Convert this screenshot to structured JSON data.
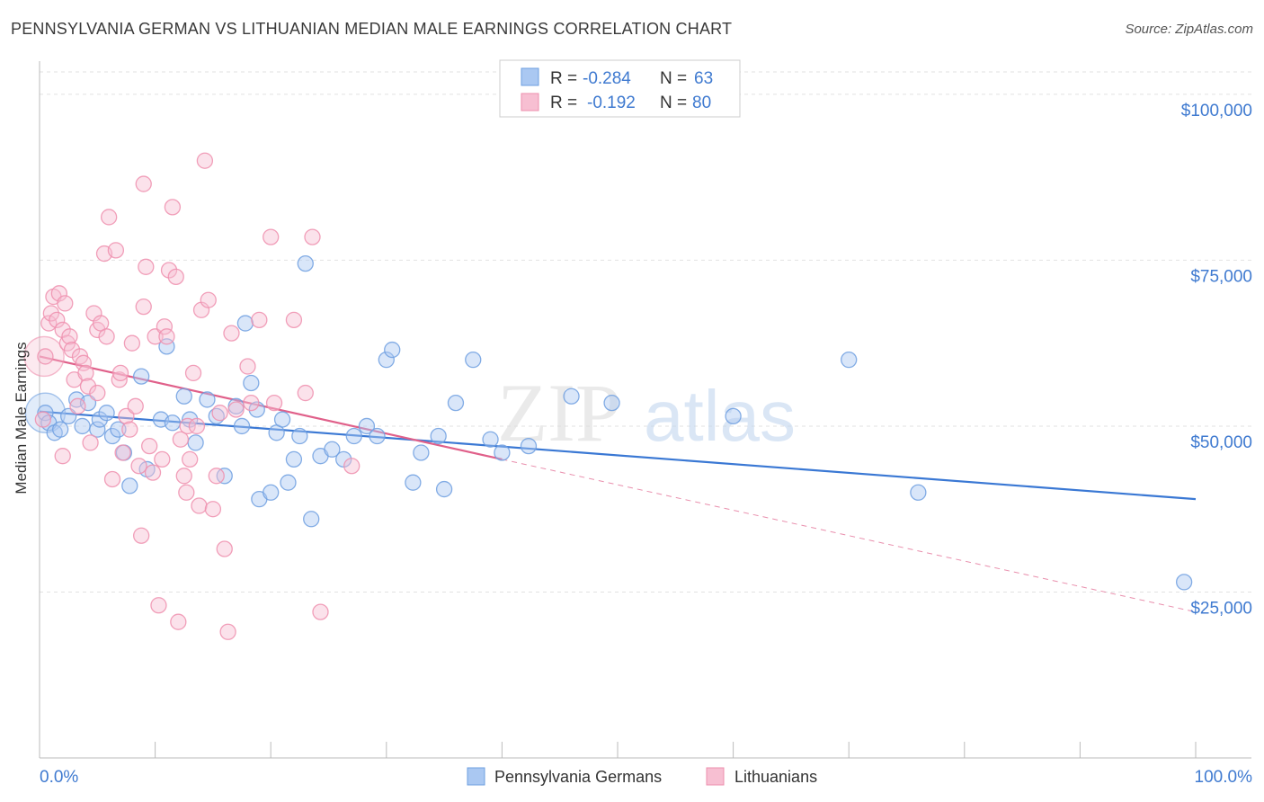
{
  "title": "PENNSYLVANIA GERMAN VS LITHUANIAN MEDIAN MALE EARNINGS CORRELATION CHART",
  "source": "Source: ZipAtlas.com",
  "watermark": {
    "zip": "ZIP",
    "atlas": "atlas"
  },
  "colors": {
    "blue": "#6e9fe0",
    "blue_fill": "#aac8f2",
    "blue_line": "#3a78d4",
    "pink": "#ee8fae",
    "pink_fill": "#f7bfd2",
    "pink_line": "#e0608a",
    "tick_label": "#3f7ad0",
    "grid": "#e2e2e2"
  },
  "legend": {
    "rows": [
      {
        "r_label": "R =",
        "r_value": "-0.284",
        "n_label": "N =",
        "n_value": "63"
      },
      {
        "r_label": "R =",
        "r_value": "-0.192",
        "n_label": "N =",
        "n_value": "80"
      }
    ]
  },
  "chart_data": {
    "type": "scatter",
    "xlabel": "",
    "ylabel": "Median Male Earnings",
    "xlim": [
      0,
      100
    ],
    "ylim": [
      0,
      105000
    ],
    "x_tick_labels": [
      "0.0%",
      "100.0%"
    ],
    "y_ticks": [
      25000,
      50000,
      75000,
      100000
    ],
    "y_tick_labels": [
      "$25,000",
      "$50,000",
      "$75,000",
      "$100,000"
    ],
    "grid": true,
    "legend_position": "top-center",
    "series": [
      {
        "name": "Pennsylvania Germans",
        "r": -0.284,
        "n": 63,
        "trend": {
          "x": [
            0,
            100
          ],
          "y": [
            52200,
            39000
          ]
        },
        "points": [
          [
            0.5,
            52000
          ],
          [
            0.8,
            50500
          ],
          [
            1.3,
            49000
          ],
          [
            1.8,
            49500
          ],
          [
            2.5,
            51500
          ],
          [
            3.2,
            54000
          ],
          [
            3.7,
            50000
          ],
          [
            4.2,
            53500
          ],
          [
            5.0,
            49500
          ],
          [
            5.2,
            51000
          ],
          [
            5.8,
            52000
          ],
          [
            6.3,
            48500
          ],
          [
            6.8,
            49500
          ],
          [
            7.3,
            46000
          ],
          [
            7.8,
            41000
          ],
          [
            8.8,
            57500
          ],
          [
            9.3,
            43500
          ],
          [
            10.5,
            51000
          ],
          [
            11.0,
            62000
          ],
          [
            11.5,
            50500
          ],
          [
            12.5,
            54500
          ],
          [
            13.0,
            51000
          ],
          [
            13.5,
            47500
          ],
          [
            14.5,
            54000
          ],
          [
            15.3,
            51500
          ],
          [
            16.0,
            42500
          ],
          [
            17.0,
            53000
          ],
          [
            17.5,
            50000
          ],
          [
            17.8,
            65500
          ],
          [
            18.3,
            56500
          ],
          [
            18.8,
            52500
          ],
          [
            19.0,
            39000
          ],
          [
            20.0,
            40000
          ],
          [
            20.5,
            49000
          ],
          [
            21.0,
            51000
          ],
          [
            21.5,
            41500
          ],
          [
            22.0,
            45000
          ],
          [
            22.5,
            48500
          ],
          [
            23.0,
            74500
          ],
          [
            23.5,
            36000
          ],
          [
            24.3,
            45500
          ],
          [
            25.3,
            46500
          ],
          [
            26.3,
            45000
          ],
          [
            27.2,
            48500
          ],
          [
            28.3,
            50000
          ],
          [
            29.2,
            48500
          ],
          [
            30.0,
            60000
          ],
          [
            30.5,
            61500
          ],
          [
            32.3,
            41500
          ],
          [
            33.0,
            46000
          ],
          [
            34.5,
            48500
          ],
          [
            35.0,
            40500
          ],
          [
            36.0,
            53500
          ],
          [
            37.5,
            60000
          ],
          [
            39.0,
            48000
          ],
          [
            40.0,
            46000
          ],
          [
            42.3,
            47000
          ],
          [
            46.0,
            54500
          ],
          [
            49.5,
            53500
          ],
          [
            60.0,
            51500
          ],
          [
            70.0,
            60000
          ],
          [
            76.0,
            40000
          ],
          [
            99.0,
            26500
          ]
        ],
        "big_points": [
          [
            0.5,
            52000
          ]
        ]
      },
      {
        "name": "Lithuanians",
        "r": -0.192,
        "n": 80,
        "trend": {
          "x": [
            0,
            40
          ],
          "y": [
            60500,
            45000
          ]
        },
        "trend_extension": {
          "x": [
            40,
            100
          ],
          "y": [
            45000,
            22000
          ]
        },
        "points": [
          [
            0.5,
            60500
          ],
          [
            0.8,
            65500
          ],
          [
            1.0,
            67000
          ],
          [
            1.2,
            69500
          ],
          [
            1.5,
            66000
          ],
          [
            1.7,
            70000
          ],
          [
            2.0,
            64500
          ],
          [
            2.2,
            68500
          ],
          [
            2.4,
            62500
          ],
          [
            2.6,
            63500
          ],
          [
            2.8,
            61500
          ],
          [
            3.0,
            57000
          ],
          [
            3.3,
            53000
          ],
          [
            3.5,
            60500
          ],
          [
            3.8,
            59500
          ],
          [
            4.0,
            58000
          ],
          [
            4.2,
            56000
          ],
          [
            4.4,
            47500
          ],
          [
            4.7,
            67000
          ],
          [
            5.0,
            64500
          ],
          [
            5.3,
            65500
          ],
          [
            5.6,
            76000
          ],
          [
            5.8,
            63500
          ],
          [
            6.0,
            81500
          ],
          [
            6.3,
            42000
          ],
          [
            6.6,
            76500
          ],
          [
            6.9,
            57000
          ],
          [
            7.2,
            46000
          ],
          [
            7.5,
            51500
          ],
          [
            7.8,
            49500
          ],
          [
            8.0,
            62500
          ],
          [
            8.3,
            53000
          ],
          [
            8.6,
            44000
          ],
          [
            8.8,
            33500
          ],
          [
            9.0,
            86500
          ],
          [
            9.2,
            74000
          ],
          [
            9.5,
            47000
          ],
          [
            9.8,
            43000
          ],
          [
            10.0,
            63500
          ],
          [
            10.3,
            23000
          ],
          [
            10.6,
            45000
          ],
          [
            10.8,
            65000
          ],
          [
            11.0,
            63500
          ],
          [
            11.2,
            73500
          ],
          [
            11.5,
            83000
          ],
          [
            11.8,
            72500
          ],
          [
            12.0,
            20500
          ],
          [
            12.2,
            48000
          ],
          [
            12.5,
            42500
          ],
          [
            12.8,
            50000
          ],
          [
            13.0,
            45000
          ],
          [
            13.3,
            58000
          ],
          [
            13.6,
            50000
          ],
          [
            13.8,
            38000
          ],
          [
            14.0,
            67500
          ],
          [
            14.3,
            90000
          ],
          [
            14.6,
            69000
          ],
          [
            15.0,
            37500
          ],
          [
            15.3,
            42500
          ],
          [
            15.6,
            52000
          ],
          [
            16.0,
            31500
          ],
          [
            16.3,
            19000
          ],
          [
            16.6,
            64000
          ],
          [
            17.0,
            52500
          ],
          [
            18.0,
            59000
          ],
          [
            18.3,
            53500
          ],
          [
            19.0,
            66000
          ],
          [
            20.0,
            78500
          ],
          [
            20.3,
            53500
          ],
          [
            22.0,
            66000
          ],
          [
            23.0,
            55000
          ],
          [
            23.6,
            78500
          ],
          [
            24.3,
            22000
          ],
          [
            27.0,
            44000
          ],
          [
            0.3,
            51000
          ],
          [
            2.0,
            45500
          ],
          [
            5.0,
            55000
          ],
          [
            7.0,
            58000
          ],
          [
            12.7,
            40000
          ],
          [
            9.0,
            68000
          ]
        ],
        "big_points": [
          [
            0.4,
            60500
          ]
        ]
      }
    ]
  }
}
